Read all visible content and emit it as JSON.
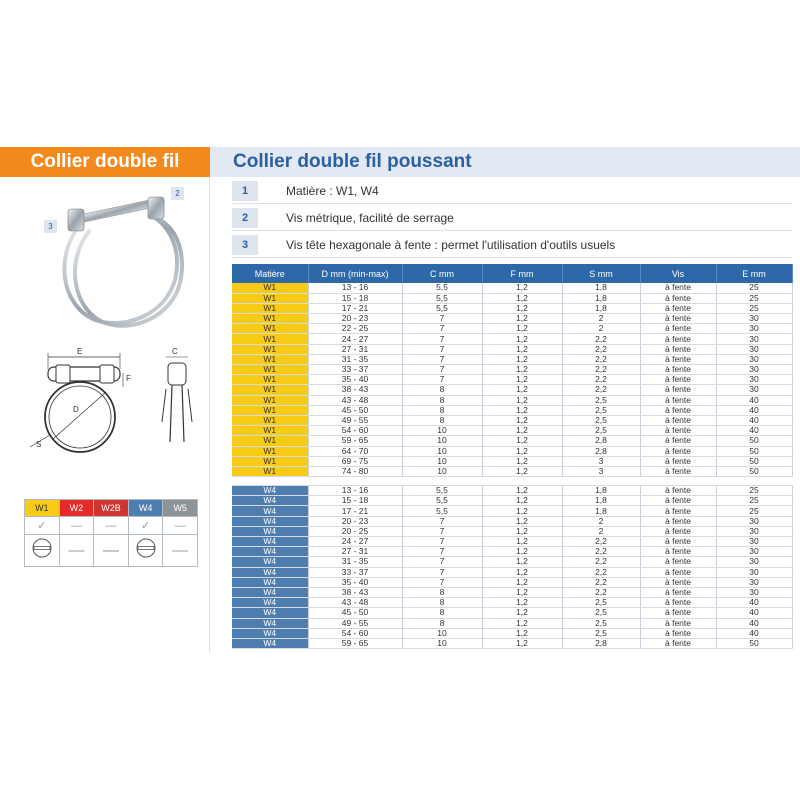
{
  "header": {
    "left_title": "Collier double fil",
    "right_title": "Collier double fil poussant"
  },
  "features": [
    {
      "num": "1",
      "text": "Matière : W1, W4"
    },
    {
      "num": "2",
      "text": "Vis métrique, facilité de serrage"
    },
    {
      "num": "3",
      "text": "Vis tête hexagonale à fente : permet l'utilisation d'outils usuels"
    }
  ],
  "photo_callouts": {
    "a": "2",
    "b": "3"
  },
  "diagram_labels": {
    "e": "E",
    "f": "F",
    "d": "D",
    "s": "S",
    "c": "C"
  },
  "colors": {
    "w1": "#f8cc16",
    "w2": "#e52b25",
    "w2b": "#d0352d",
    "w4": "#4e7eb0",
    "w5": "#8e9398",
    "header_orange": "#f2891e",
    "title_blue": "#2b5fa0"
  },
  "matiere_table": {
    "codes": [
      "W1",
      "W2",
      "W2B",
      "W4",
      "W5"
    ],
    "available": [
      "✓",
      "—",
      "—",
      "✓",
      "—"
    ],
    "heads": [
      "slotted-screw",
      "—",
      "—",
      "slotted-screw",
      "—"
    ]
  },
  "table": {
    "columns": [
      "Matière",
      "D mm (min-max)",
      "C mm",
      "F mm",
      "S mm",
      "Vis",
      "E mm"
    ],
    "w1_rows": [
      [
        "W1",
        "13 - 16",
        "5,5",
        "1,2",
        "1,8",
        "à fente",
        "25"
      ],
      [
        "W1",
        "15 - 18",
        "5,5",
        "1,2",
        "1,8",
        "à fente",
        "25"
      ],
      [
        "W1",
        "17 - 21",
        "5,5",
        "1,2",
        "1,8",
        "à fente",
        "25"
      ],
      [
        "W1",
        "20 - 23",
        "7",
        "1,2",
        "2",
        "à fente",
        "30"
      ],
      [
        "W1",
        "22 - 25",
        "7",
        "1,2",
        "2",
        "à fente",
        "30"
      ],
      [
        "W1",
        "24 - 27",
        "7",
        "1,2",
        "2,2",
        "à fente",
        "30"
      ],
      [
        "W1",
        "27 - 31",
        "7",
        "1,2",
        "2,2",
        "à fente",
        "30"
      ],
      [
        "W1",
        "31 - 35",
        "7",
        "1,2",
        "2,2",
        "à fente",
        "30"
      ],
      [
        "W1",
        "33 - 37",
        "7",
        "1,2",
        "2,2",
        "à fente",
        "30"
      ],
      [
        "W1",
        "35 - 40",
        "7",
        "1,2",
        "2,2",
        "à fente",
        "30"
      ],
      [
        "W1",
        "38 - 43",
        "8",
        "1,2",
        "2,2",
        "à fente",
        "30"
      ],
      [
        "W1",
        "43 - 48",
        "8",
        "1,2",
        "2,5",
        "à fente",
        "40"
      ],
      [
        "W1",
        "45 - 50",
        "8",
        "1,2",
        "2,5",
        "à fente",
        "40"
      ],
      [
        "W1",
        "49 - 55",
        "8",
        "1,2",
        "2,5",
        "à fente",
        "40"
      ],
      [
        "W1",
        "54 - 60",
        "10",
        "1,2",
        "2,5",
        "à fente",
        "40"
      ],
      [
        "W1",
        "59 - 65",
        "10",
        "1,2",
        "2,8",
        "à fente",
        "50"
      ],
      [
        "W1",
        "64 - 70",
        "10",
        "1,2",
        "2,8",
        "à fente",
        "50"
      ],
      [
        "W1",
        "69 - 75",
        "10",
        "1,2",
        "3",
        "à fente",
        "50"
      ],
      [
        "W1",
        "74 - 80",
        "10",
        "1,2",
        "3",
        "à fente",
        "50"
      ]
    ],
    "w4_rows": [
      [
        "W4",
        "13 - 16",
        "5,5",
        "1,2",
        "1,8",
        "à fente",
        "25"
      ],
      [
        "W4",
        "15 - 18",
        "5,5",
        "1,2",
        "1,8",
        "à fente",
        "25"
      ],
      [
        "W4",
        "17 - 21",
        "5,5",
        "1,2",
        "1,8",
        "à fente",
        "25"
      ],
      [
        "W4",
        "20 - 23",
        "7",
        "1,2",
        "2",
        "à fente",
        "30"
      ],
      [
        "W4",
        "20 - 25",
        "7",
        "1,2",
        "2",
        "à fente",
        "30"
      ],
      [
        "W4",
        "24 - 27",
        "7",
        "1,2",
        "2,2",
        "à fente",
        "30"
      ],
      [
        "W4",
        "27 - 31",
        "7",
        "1,2",
        "2,2",
        "à fente",
        "30"
      ],
      [
        "W4",
        "31 - 35",
        "7",
        "1,2",
        "2,2",
        "à fente",
        "30"
      ],
      [
        "W4",
        "33 - 37",
        "7",
        "1,2",
        "2,2",
        "à fente",
        "30"
      ],
      [
        "W4",
        "35 - 40",
        "7",
        "1,2",
        "2,2",
        "à fente",
        "30"
      ],
      [
        "W4",
        "38 - 43",
        "8",
        "1,2",
        "2,2",
        "à fente",
        "30"
      ],
      [
        "W4",
        "43 - 48",
        "8",
        "1,2",
        "2,5",
        "à fente",
        "40"
      ],
      [
        "W4",
        "45 - 50",
        "8",
        "1,2",
        "2,5",
        "à fente",
        "40"
      ],
      [
        "W4",
        "49 - 55",
        "8",
        "1,2",
        "2,5",
        "à fente",
        "40"
      ],
      [
        "W4",
        "54 - 60",
        "10",
        "1,2",
        "2,5",
        "à fente",
        "40"
      ],
      [
        "W4",
        "59 - 65",
        "10",
        "1,2",
        "2,8",
        "à fente",
        "50"
      ]
    ]
  }
}
